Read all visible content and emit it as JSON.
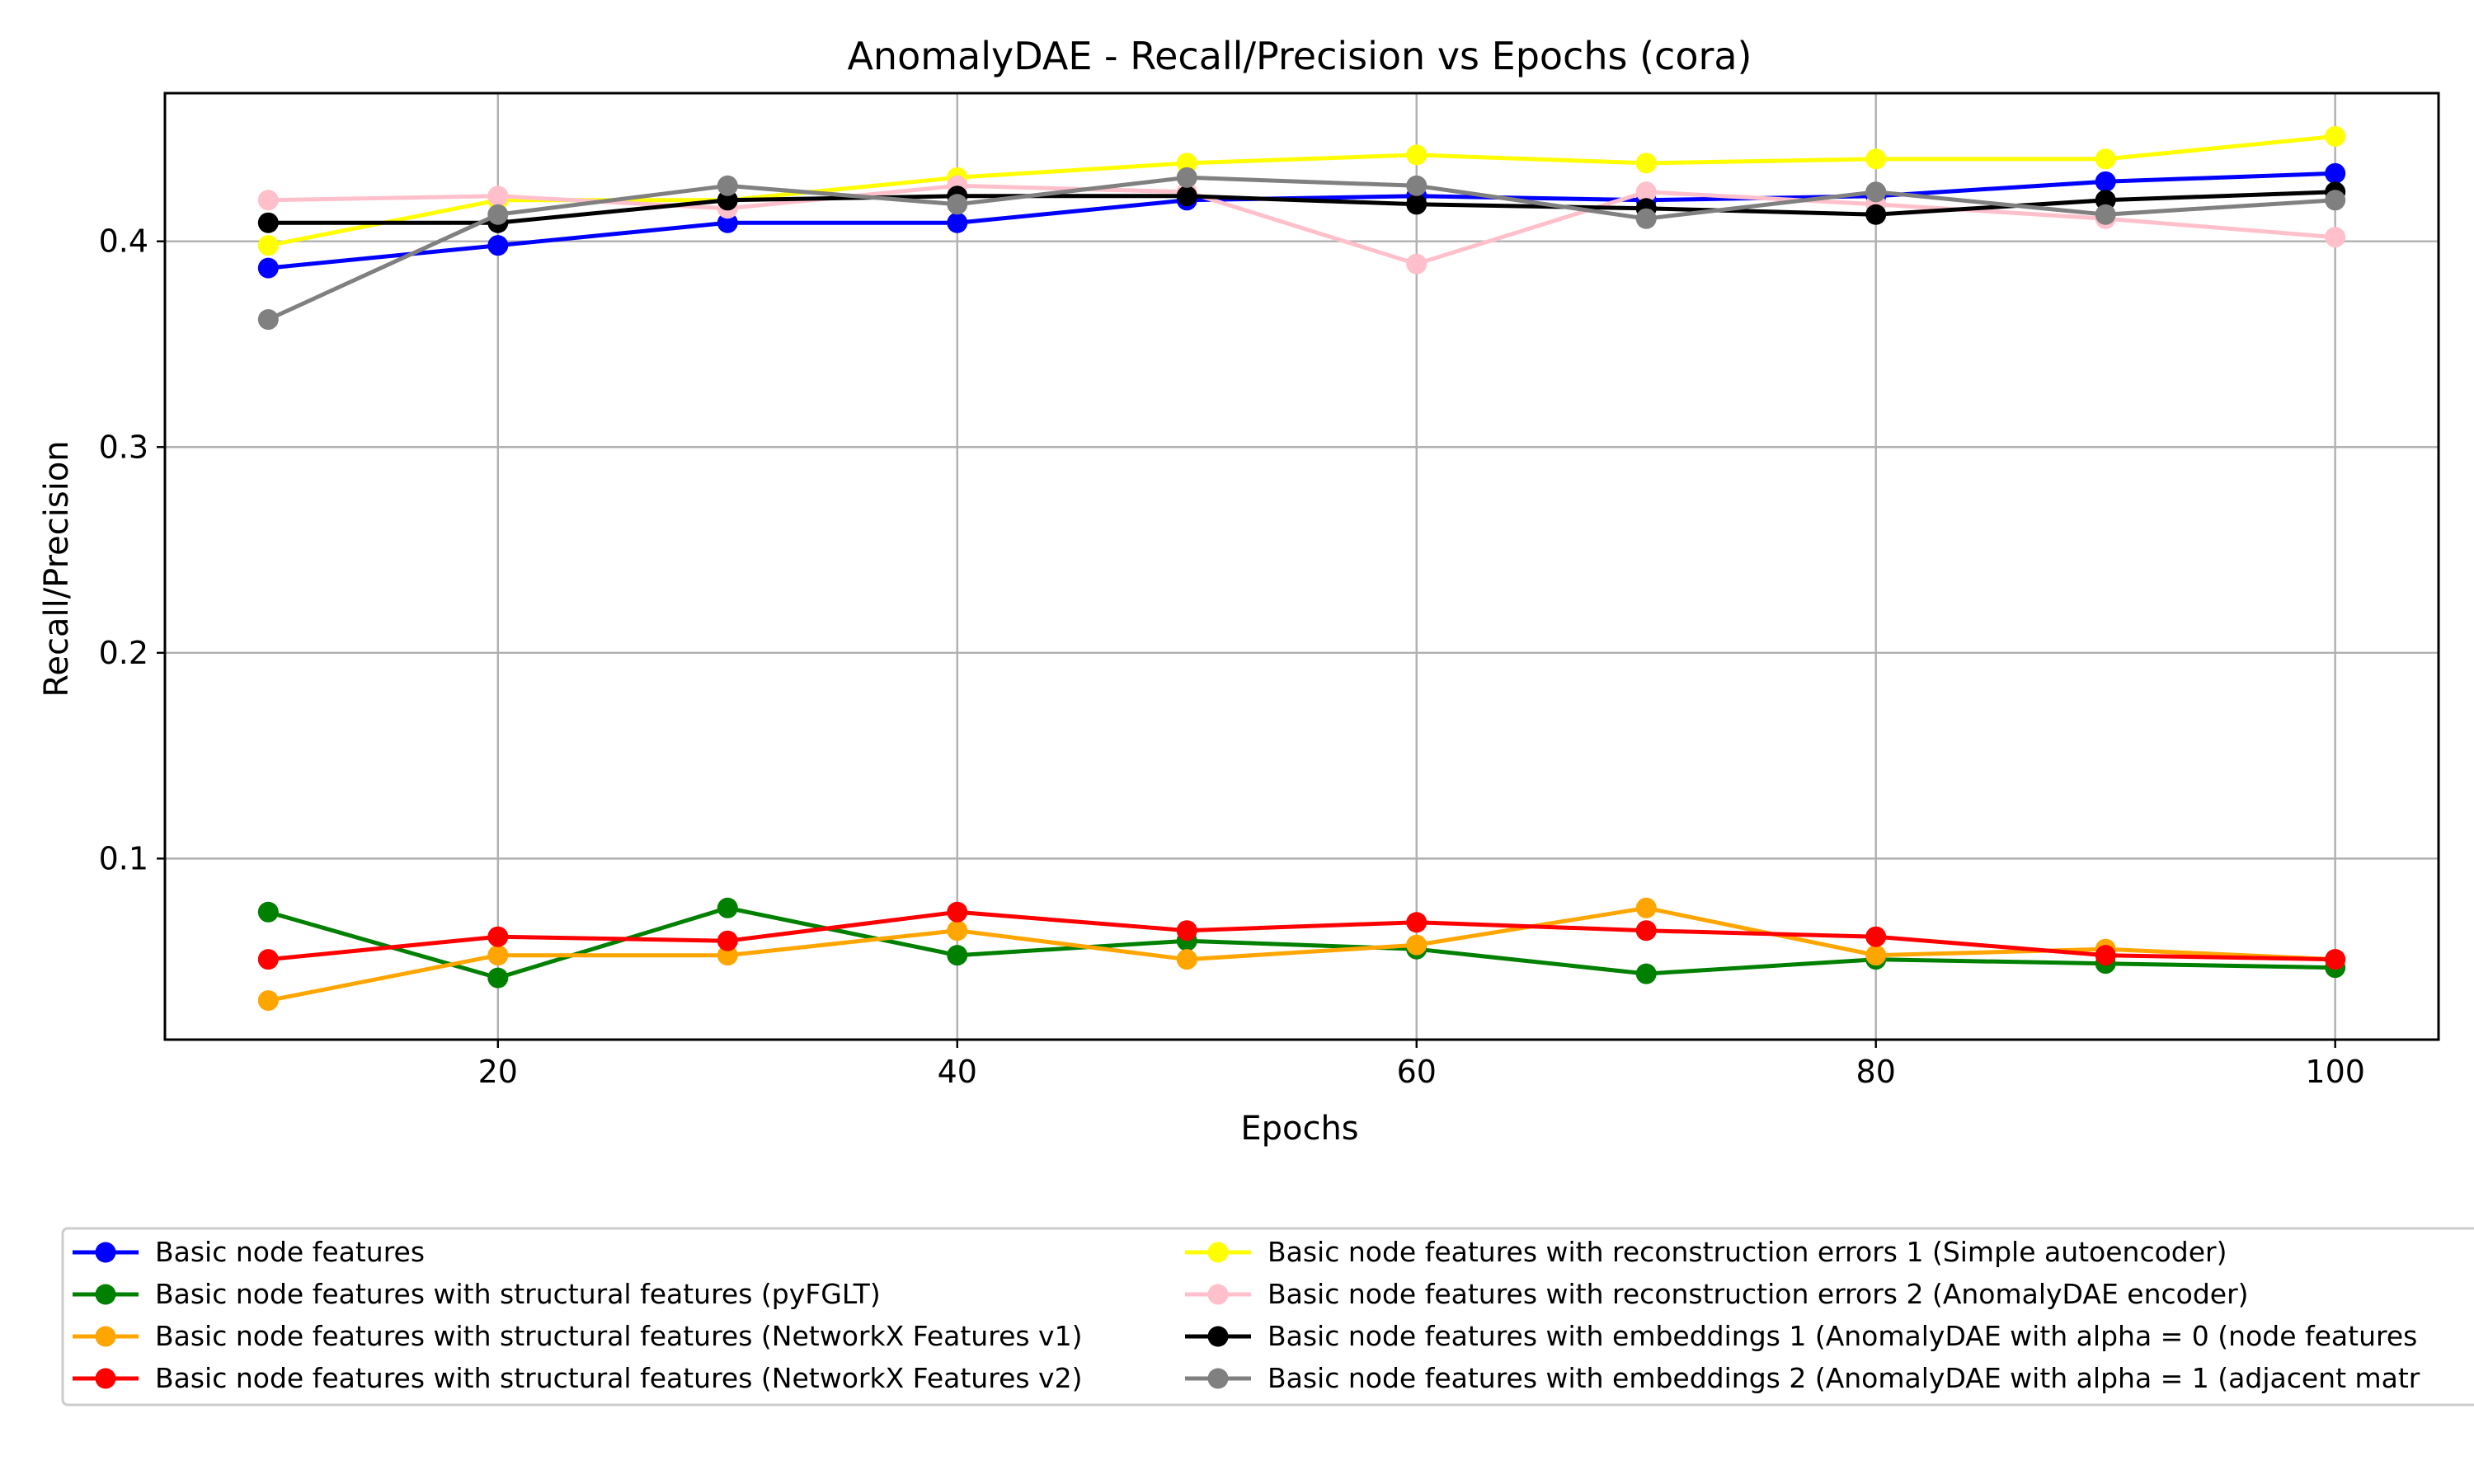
{
  "chart_data": {
    "type": "line",
    "title": "AnomalyDAE - Recall/Precision vs Epochs (cora)",
    "xlabel": "Epochs",
    "ylabel": "Recall/Precision",
    "xlim": [
      5.5,
      104.5
    ],
    "ylim": [
      0.012,
      0.472
    ],
    "xticks": [
      20,
      40,
      60,
      80,
      100
    ],
    "yticks": [
      0.1,
      0.2,
      0.3,
      0.4
    ],
    "grid": true,
    "legend_position": "below plot, two columns",
    "x": [
      10,
      20,
      30,
      40,
      50,
      60,
      70,
      80,
      90,
      100
    ],
    "series": [
      {
        "name": "Basic node features",
        "color": "#0000ff",
        "values": [
          0.387,
          0.398,
          0.409,
          0.409,
          0.42,
          0.422,
          0.42,
          0.422,
          0.429,
          0.433
        ]
      },
      {
        "name": "Basic node features with structural features (pyFGLT)",
        "color": "#008000",
        "values": [
          0.074,
          0.042,
          0.076,
          0.053,
          0.06,
          0.056,
          0.044,
          0.051,
          0.049,
          0.047
        ]
      },
      {
        "name": "Basic node features with structural features (NetworkX Features v1)",
        "color": "#ffa500",
        "values": [
          0.031,
          0.053,
          0.053,
          0.065,
          0.051,
          0.058,
          0.076,
          0.053,
          0.056,
          0.051
        ]
      },
      {
        "name": "Basic node features with structural features (NetworkX Features v2)",
        "color": "#ff0000",
        "values": [
          0.051,
          0.062,
          0.06,
          0.074,
          0.065,
          0.069,
          0.065,
          0.062,
          0.053,
          0.051
        ]
      },
      {
        "name": "Basic node features with reconstruction errors 1 (Simple autoencoder)",
        "color": "#ffff00",
        "values": [
          0.398,
          0.42,
          0.42,
          0.431,
          0.438,
          0.442,
          0.438,
          0.44,
          0.44,
          0.451
        ]
      },
      {
        "name": "Basic node features with reconstruction errors 2 (AnomalyDAE encoder)",
        "color": "#ffc0cb",
        "values": [
          0.42,
          0.422,
          0.416,
          0.427,
          0.424,
          0.389,
          0.424,
          0.418,
          0.411,
          0.402
        ]
      },
      {
        "name": "Basic node features with embeddings 1 (AnomalyDAE with alpha = 0 (node features",
        "color": "#000000",
        "values": [
          0.409,
          0.409,
          0.42,
          0.422,
          0.422,
          0.418,
          0.416,
          0.413,
          0.42,
          0.424
        ]
      },
      {
        "name": "Basic node features with embeddings 2 (AnomalyDAE with alpha = 1 (adjacent matr",
        "color": "#808080",
        "values": [
          0.362,
          0.413,
          0.427,
          0.418,
          0.431,
          0.427,
          0.411,
          0.424,
          0.413,
          0.42
        ]
      }
    ]
  }
}
